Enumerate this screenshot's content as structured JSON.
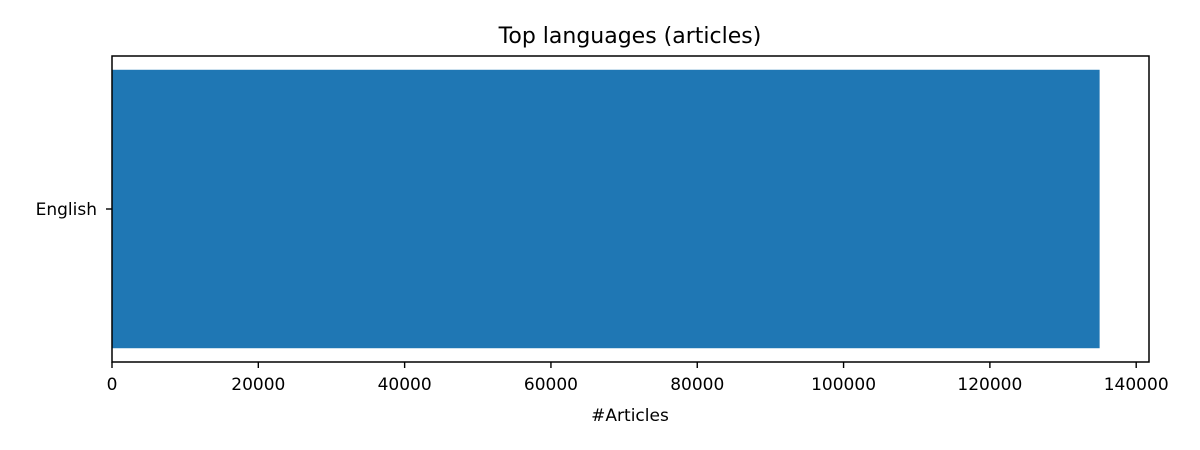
{
  "chart_data": {
    "type": "bar",
    "orientation": "horizontal",
    "title": "Top languages (articles)",
    "xlabel": "#Articles",
    "ylabel": "",
    "categories": [
      "English"
    ],
    "values": [
      135000
    ],
    "xlim": [
      0,
      141750
    ],
    "xticks": [
      0,
      20000,
      40000,
      60000,
      80000,
      100000,
      120000,
      140000
    ],
    "xtick_labels": [
      "0",
      "20000",
      "40000",
      "60000",
      "80000",
      "100000",
      "120000",
      "140000"
    ],
    "grid": false,
    "legend": "none",
    "bar_color": "#1f77b4"
  }
}
